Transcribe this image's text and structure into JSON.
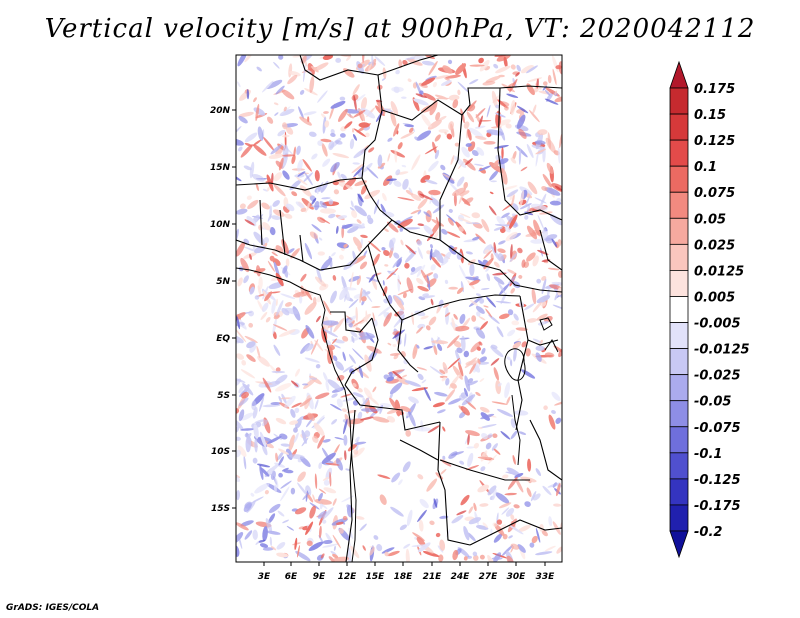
{
  "title": "Vertical velocity [m/s] at 900hPa, VT: 2020042112",
  "footer": "GrADS: IGES/COLA",
  "lat_labels": [
    "20N",
    "15N",
    "10N",
    "5N",
    "EQ",
    "5S",
    "10S",
    "15S"
  ],
  "lon_labels": [
    "3E",
    "6E",
    "9E",
    "12E",
    "15E",
    "18E",
    "21E",
    "24E",
    "27E",
    "30E",
    "33E"
  ],
  "colorbar": {
    "labels": [
      "0.175",
      "0.15",
      "0.125",
      "0.1",
      "0.075",
      "0.05",
      "0.025",
      "0.0125",
      "0.005",
      "-0.005",
      "-0.0125",
      "-0.025",
      "-0.05",
      "-0.075",
      "-0.1",
      "-0.125",
      "-0.175",
      "-0.2"
    ],
    "colors": [
      "#b2182b",
      "#c62a2f",
      "#d6393a",
      "#e34b4a",
      "#ec6a62",
      "#f28a80",
      "#f6a99f",
      "#fac6be",
      "#fde3de",
      "#ffffff",
      "#e2e2fa",
      "#c8c8f4",
      "#ababee",
      "#8e8ee6",
      "#6f6fdc",
      "#5050cf",
      "#3434c0",
      "#2020ae",
      "#10109a"
    ]
  },
  "colors": {
    "positive": "#e34b4a",
    "negative": "#5050cf",
    "border": "#000000"
  }
}
